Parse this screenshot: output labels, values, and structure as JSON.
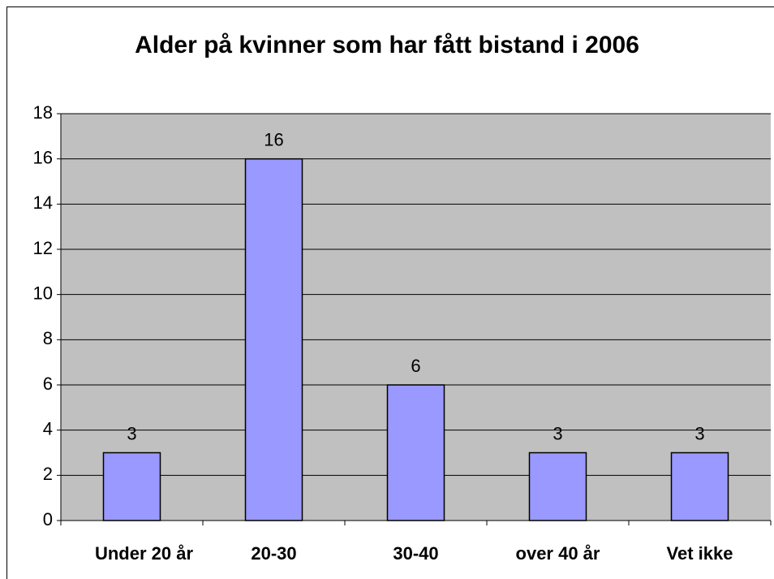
{
  "chart_data": {
    "type": "bar",
    "title": "Alder på kvinner som har fått bistand i 2006",
    "categories": [
      "Under 20 år",
      "20-30",
      "30-40",
      "over 40 år",
      "Vet ikke"
    ],
    "values": [
      3,
      16,
      6,
      3,
      3
    ],
    "color": "#9999ff",
    "ylim": [
      0,
      18
    ],
    "yticks": [
      0,
      2,
      4,
      6,
      8,
      10,
      12,
      14,
      16,
      18
    ],
    "grid": true
  }
}
